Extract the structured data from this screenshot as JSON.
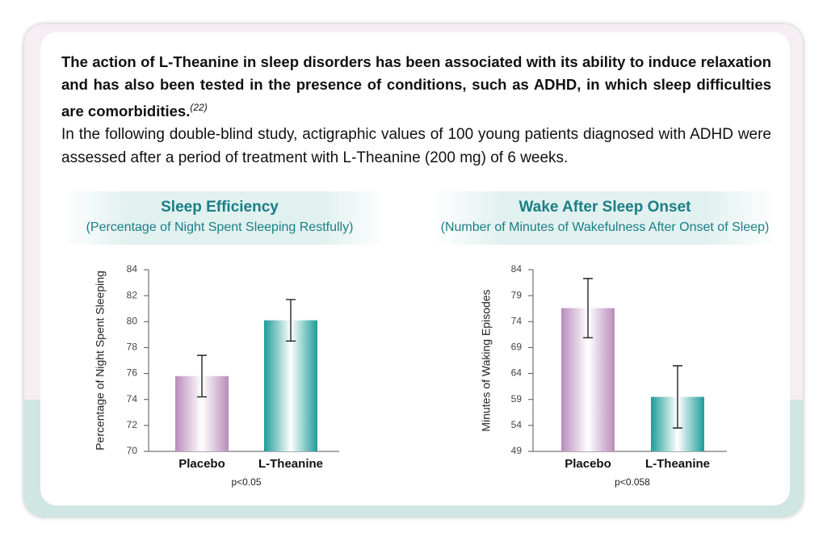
{
  "intro": {
    "lead": "The action of L-Theanine in sleep disorders has been associated with its ability to induce relaxation and has also been tested in the presence of conditions, such as ADHD, in which sleep difficulties are comorbidities.",
    "lead_ref": "(22)",
    "body": "In the following double-blind study, actigraphic values of 100 young patients diagnosed with ADHD were assessed after a period of treatment with L-Theanine (200 mg) of 6 weeks."
  },
  "chart_data": [
    {
      "type": "bar",
      "title": "Sleep Efficiency",
      "subtitle": "(Percentage of Night Spent Sleeping Restfully)",
      "ylabel": "Percentage of Night Spent Sleeping",
      "categories": [
        "Placebo",
        "L-Theanine"
      ],
      "values": [
        75.8,
        80.1
      ],
      "errors": [
        1.6,
        1.6
      ],
      "colors": [
        "#b98cbb",
        "#1e9c98"
      ],
      "ylim": [
        70,
        84
      ],
      "yticks": [
        70,
        72,
        74,
        76,
        78,
        80,
        82,
        84
      ],
      "note": "p<0.05"
    },
    {
      "type": "bar",
      "title": "Wake After Sleep Onset",
      "subtitle": "(Number of Minutes of Wakefulness After Onset of Sleep)",
      "ylabel": "Minutes of Waking Episodes",
      "categories": [
        "Placebo",
        "L-Theanine"
      ],
      "values": [
        76.6,
        59.5
      ],
      "errors": [
        5.7,
        6
      ],
      "colors": [
        "#b98cbb",
        "#1e9c98"
      ],
      "ylim": [
        49,
        84
      ],
      "yticks": [
        49,
        54,
        59,
        64,
        69,
        74,
        79,
        84
      ],
      "note": "p<0.058"
    }
  ]
}
